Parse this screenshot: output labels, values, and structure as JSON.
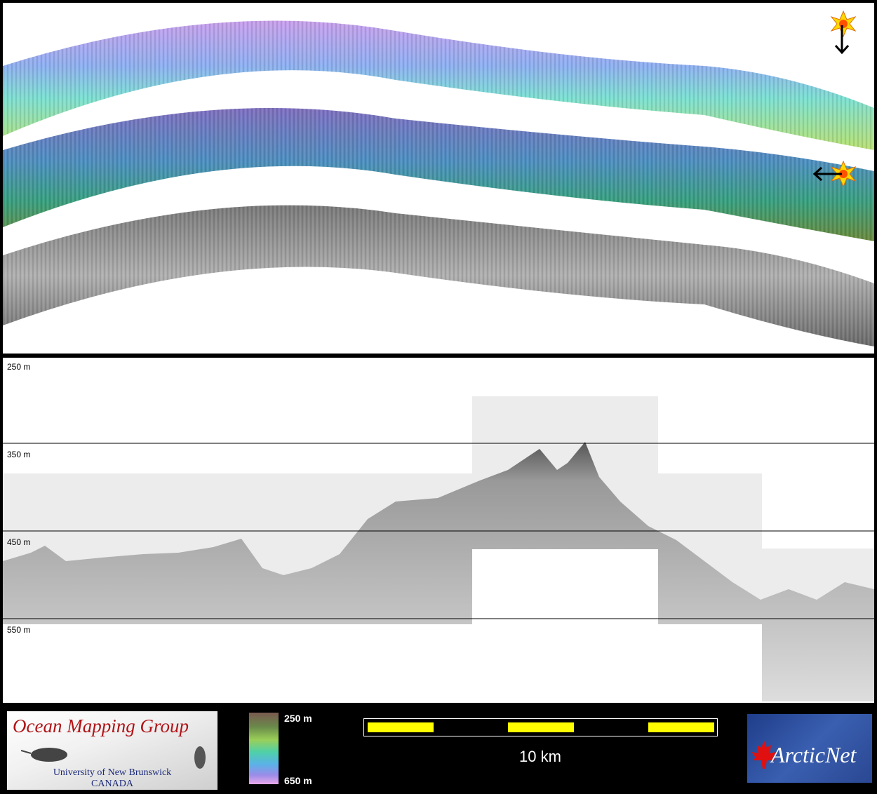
{
  "profile": {
    "depth_labels": [
      "250 m",
      "350 m",
      "450 m",
      "550 m"
    ]
  },
  "legend": {
    "org_title": "Ocean Mapping Group",
    "org_university": "University of New Brunswick",
    "org_country": "CANADA",
    "colorbar_min": "250 m",
    "colorbar_max": "650 m",
    "scale_label": "10 km",
    "partner_logo": "ArcticNet"
  },
  "icons": [
    "sun-icon",
    "arrow-down-icon",
    "arrow-left-icon",
    "maple-leaf-icon",
    "narwhal-icon"
  ]
}
